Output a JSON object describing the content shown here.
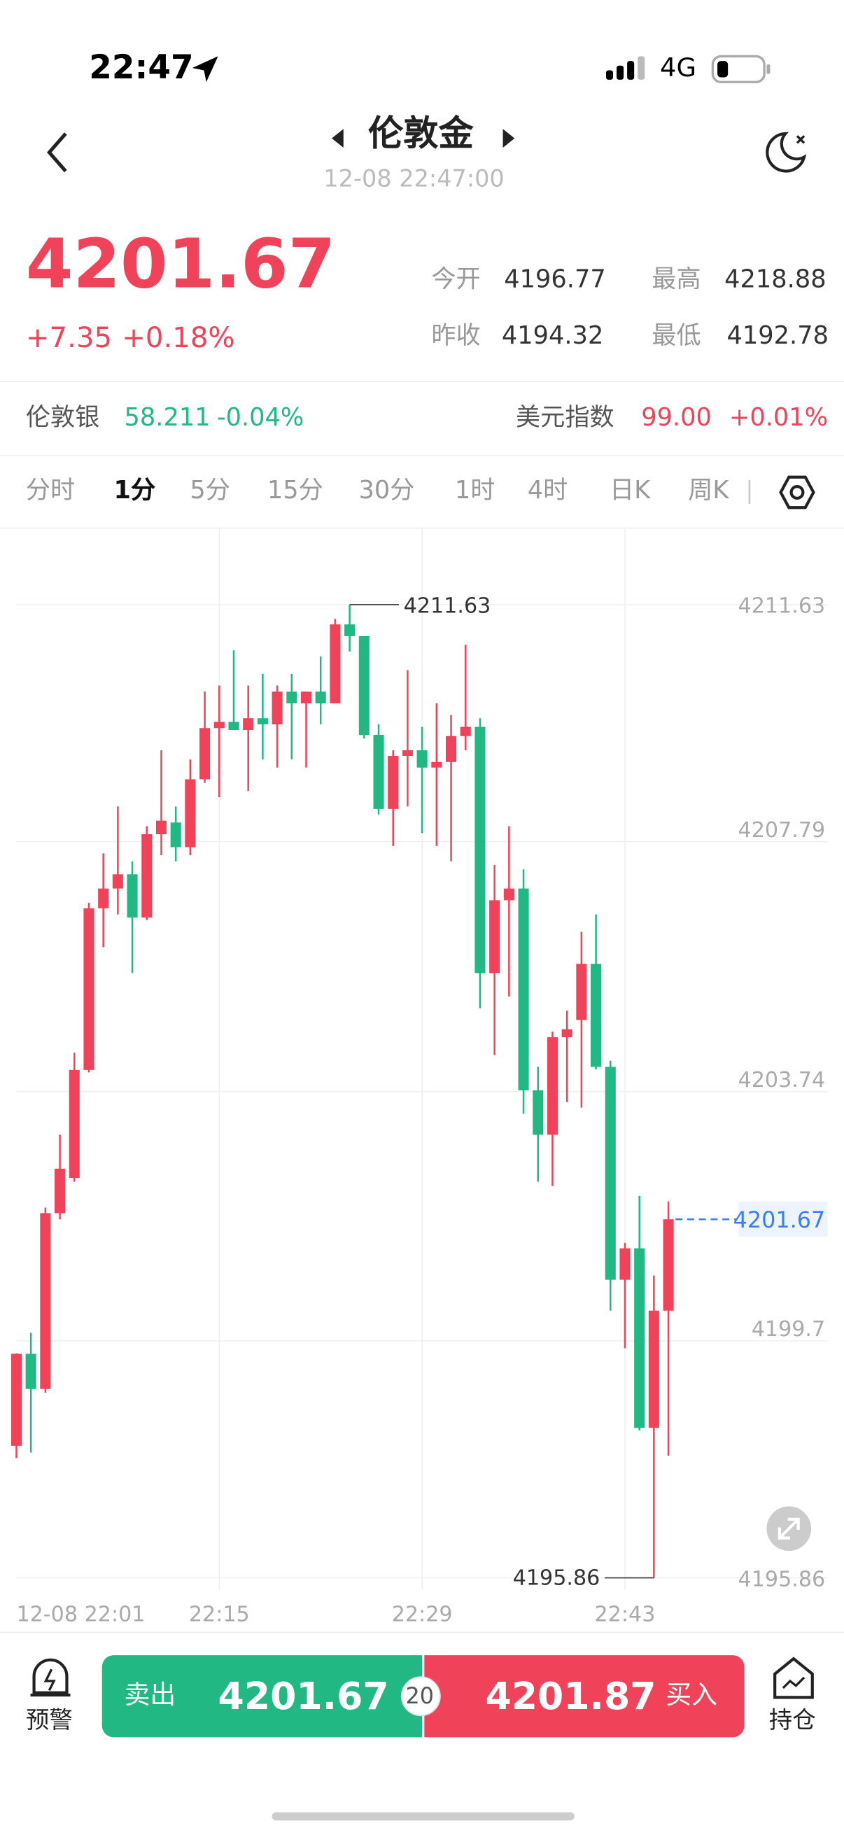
{
  "status": {
    "time": "22:47",
    "network": "4G"
  },
  "header": {
    "title": "伦敦金",
    "subtitle": "12-08 22:47:00"
  },
  "quote": {
    "price": "4201.67",
    "change": "+7.35",
    "change_pct": "+0.18%",
    "stats": [
      {
        "label": "今开",
        "value": "4196.77"
      },
      {
        "label": "最高",
        "value": "4218.88"
      },
      {
        "label": "昨收",
        "value": "4194.32"
      },
      {
        "label": "最低",
        "value": "4192.78"
      }
    ]
  },
  "related": [
    {
      "name": "伦敦银",
      "price": "58.211",
      "pct": "-0.04%"
    },
    {
      "name": "美元指数",
      "price": "99.00",
      "pct": "+0.01%"
    }
  ],
  "tabs": {
    "items": [
      "分时",
      "1分",
      "5分",
      "15分",
      "30分",
      "1时",
      "4时",
      "日K",
      "周K"
    ],
    "active": 1
  },
  "chart_data": {
    "type": "candlestick",
    "up_color": "#f0435a",
    "down_color": "#22b884",
    "categories": [
      "12-08 22:01",
      null,
      null,
      null,
      null,
      null,
      null,
      null,
      null,
      null,
      null,
      null,
      null,
      null,
      "22:15",
      null,
      null,
      null,
      null,
      null,
      null,
      null,
      null,
      null,
      null,
      null,
      null,
      null,
      "22:29",
      null,
      null,
      null,
      null,
      null,
      null,
      null,
      null,
      null,
      null,
      null,
      null,
      null,
      "22:43",
      null,
      null,
      null
    ],
    "open": [
      4198.0,
      4199.49,
      4198.92,
      4201.77,
      4202.34,
      4204.09,
      4206.71,
      4207.03,
      4207.26,
      4206.56,
      4207.91,
      4208.1,
      4207.7,
      4208.8,
      4209.63,
      4209.73,
      4209.6,
      4209.79,
      4209.69,
      4210.22,
      4210.03,
      4210.22,
      4210.03,
      4211.31,
      4211.12,
      4209.52,
      4208.32,
      4209.18,
      4209.27,
      4208.99,
      4209.08,
      4209.5,
      4209.65,
      4205.66,
      4206.84,
      4207.03,
      4203.76,
      4203.04,
      4204.62,
      4204.9,
      4205.81,
      4204.14,
      4200.69,
      4201.2,
      4198.29,
      4200.19
    ],
    "high": [
      4199.5,
      4199.83,
      4201.86,
      4203.04,
      4204.37,
      4206.8,
      4207.6,
      4208.36,
      4207.47,
      4208.04,
      4209.27,
      4208.36,
      4209.12,
      4210.22,
      4210.32,
      4210.89,
      4210.32,
      4210.51,
      4210.32,
      4210.51,
      4210.22,
      4210.79,
      4211.4,
      4211.63,
      4211.12,
      4209.69,
      4209.27,
      4210.57,
      4209.65,
      4210.03,
      4209.84,
      4210.98,
      4209.79,
      4207.41,
      4208.04,
      4207.34,
      4204.14,
      4204.71,
      4205.05,
      4206.33,
      4206.61,
      4204.24,
      4201.29,
      4202.05,
      4200.76,
      4201.96
    ],
    "low": [
      4197.8,
      4197.89,
      4198.86,
      4201.67,
      4202.28,
      4204.05,
      4206.08,
      4206.61,
      4205.66,
      4206.52,
      4207.57,
      4207.47,
      4207.57,
      4208.74,
      4208.51,
      4209.6,
      4208.61,
      4209.12,
      4208.99,
      4209.12,
      4208.99,
      4209.69,
      4210.03,
      4210.87,
      4209.46,
      4208.23,
      4207.72,
      4208.36,
      4207.93,
      4207.72,
      4207.47,
      4209.27,
      4205.09,
      4204.33,
      4205.28,
      4203.38,
      4202.28,
      4202.21,
      4203.57,
      4203.48,
      4204.1,
      4200.19,
      4199.58,
      4198.25,
      4195.86,
      4197.84
    ],
    "close": [
      4199.49,
      4198.92,
      4201.77,
      4202.49,
      4204.09,
      4206.71,
      4207.03,
      4207.26,
      4206.56,
      4207.91,
      4208.13,
      4207.7,
      4208.8,
      4209.63,
      4209.73,
      4209.6,
      4209.79,
      4209.69,
      4210.22,
      4210.03,
      4210.22,
      4210.03,
      4211.31,
      4211.12,
      4209.52,
      4208.32,
      4209.18,
      4209.27,
      4208.99,
      4209.08,
      4209.5,
      4209.65,
      4205.66,
      4206.84,
      4207.03,
      4203.76,
      4203.04,
      4204.62,
      4204.75,
      4205.81,
      4204.14,
      4200.69,
      4201.2,
      4198.29,
      4200.19,
      4201.67
    ],
    "ylim": [
      4195.67,
      4212.88
    ],
    "yticks": [
      4211.63,
      4207.79,
      4203.74,
      4199.7,
      4195.86
    ],
    "grid": true,
    "annotations": {
      "high": "4211.63",
      "low": "4195.86",
      "last": "4201.67"
    }
  },
  "trade": {
    "alert": "预警",
    "sell_label": "卖出",
    "sell_price": "4201.67",
    "spread": "20",
    "buy_price": "4201.87",
    "buy_label": "买入",
    "position": "持仓"
  }
}
